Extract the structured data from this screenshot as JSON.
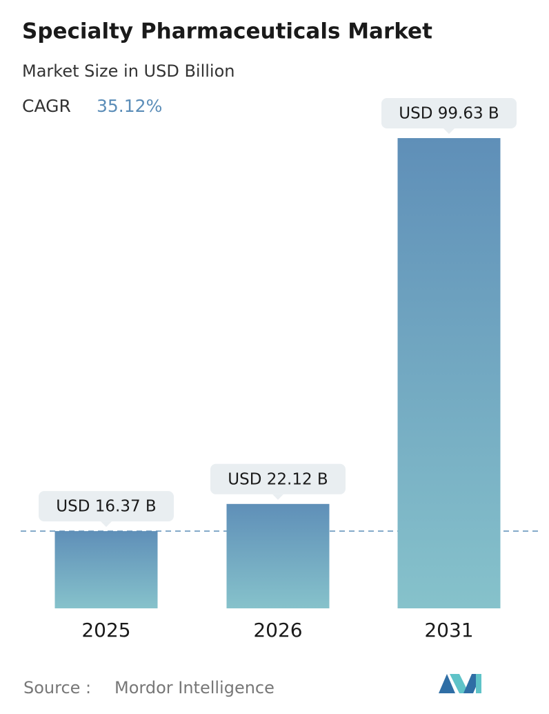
{
  "chart_data": {
    "type": "bar",
    "title": "Specialty Pharmaceuticals Market",
    "subtitle": "Market Size in USD Billion",
    "cagr_label": "CAGR",
    "cagr_value": "35.12%",
    "categories": [
      "2025",
      "2026",
      "2031"
    ],
    "values": [
      16.37,
      22.12,
      99.63
    ],
    "value_labels": [
      "USD 16.37 B",
      "USD 22.12 B",
      "USD 99.63 B"
    ],
    "color": "#6a9fc0",
    "source_label": "Source :",
    "source": "Mordor Intelligence"
  }
}
